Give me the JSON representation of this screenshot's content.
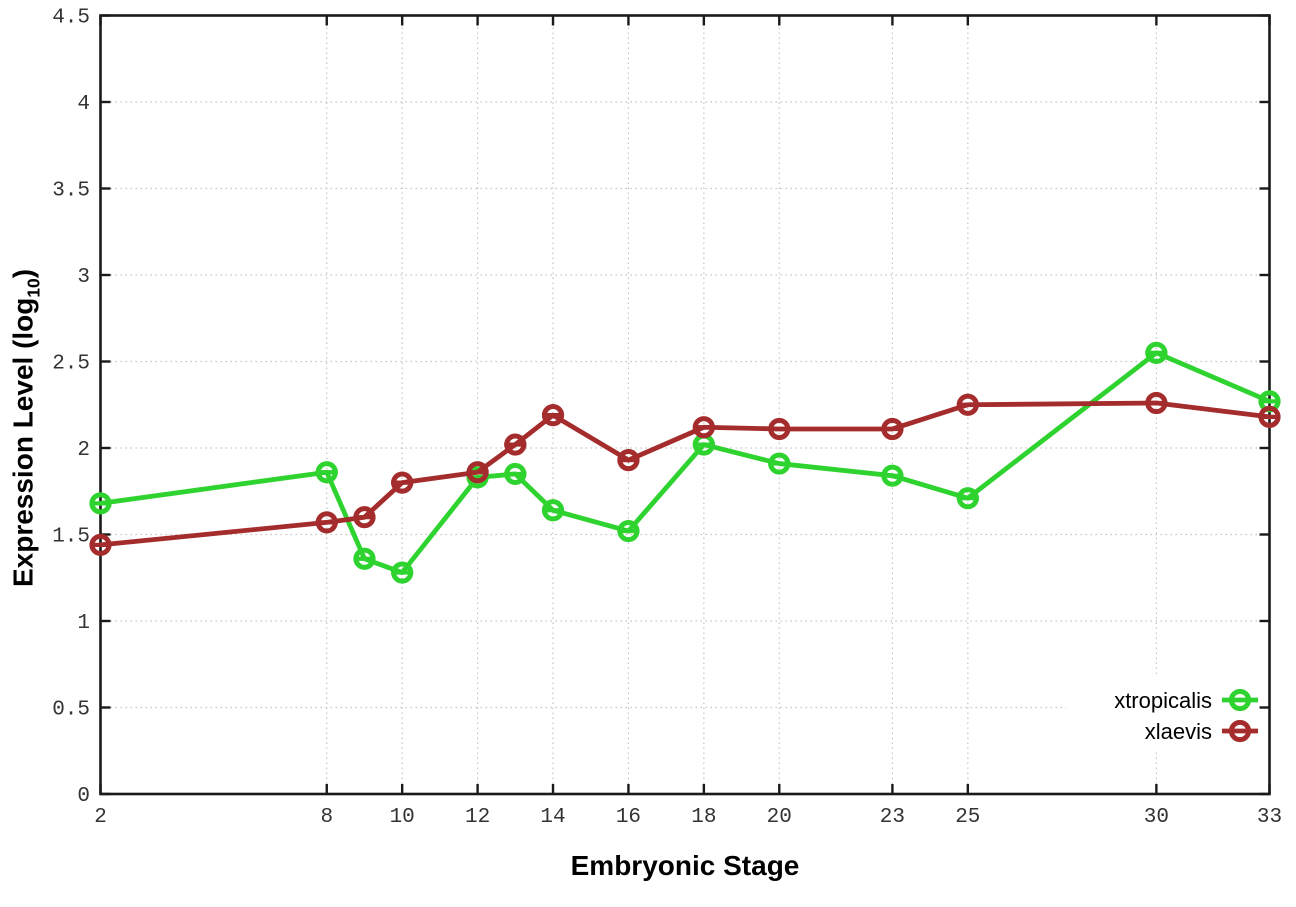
{
  "chart_data": {
    "type": "line",
    "xlabel": "Embryonic Stage",
    "ylabel_prefix": "Expression Level (log",
    "ylabel_sub": "10",
    "ylabel_suffix": ")",
    "x": [
      2,
      8,
      9,
      10,
      12,
      13,
      14,
      16,
      18,
      20,
      23,
      25,
      30,
      33
    ],
    "series": [
      {
        "name": "xtropicalis",
        "color": "#2fd32f",
        "values": [
          1.68,
          1.86,
          1.36,
          1.28,
          1.83,
          1.85,
          1.64,
          1.52,
          2.02,
          1.91,
          1.84,
          1.71,
          2.55,
          2.27
        ]
      },
      {
        "name": "xlaevis",
        "color": "#a42c2c",
        "values": [
          1.44,
          1.57,
          1.6,
          1.8,
          1.86,
          2.02,
          2.19,
          1.93,
          2.12,
          2.11,
          2.11,
          2.25,
          2.26,
          2.18
        ]
      }
    ],
    "xtick_labels": [
      "2",
      "8",
      "10",
      "12",
      "14",
      "16",
      "18",
      "20",
      "23",
      "25",
      "30",
      "33"
    ],
    "xtick_values": [
      2,
      8,
      10,
      12,
      14,
      16,
      18,
      20,
      23,
      25,
      30,
      33
    ],
    "ytick_values": [
      0,
      0.5,
      1,
      1.5,
      2,
      2.5,
      3,
      3.5,
      4,
      4.5
    ],
    "xlim": [
      2,
      33
    ],
    "ylim": [
      0,
      4.5
    ],
    "grid": true,
    "legend_position": "bottom-right",
    "colors": {
      "background": "#ffffff",
      "axis": "#1a1a1a",
      "grid": "#c4c4c4",
      "tick_label": "#333333",
      "legend_text": "#000000"
    }
  }
}
